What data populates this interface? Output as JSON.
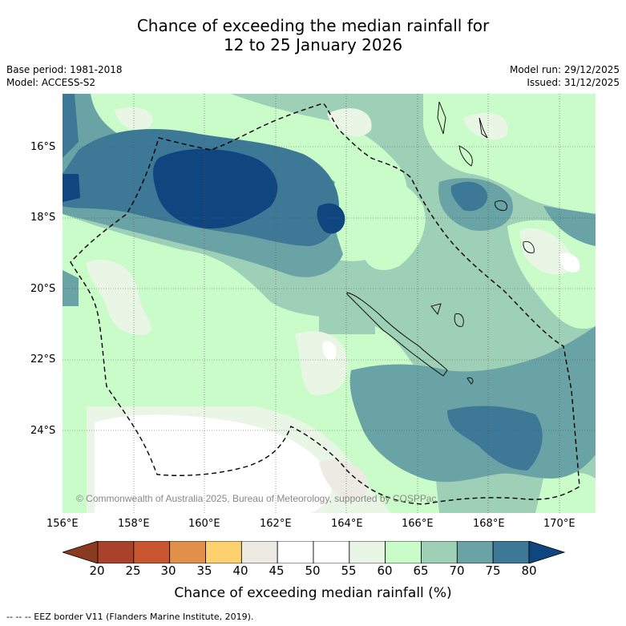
{
  "title": {
    "line1": "Chance of exceeding the median rainfall for",
    "line2": "12 to 25 January 2026"
  },
  "meta": {
    "base_period": "Base period: 1981-2018",
    "model": "Model: ACCESS-S2",
    "model_run": "Model run: 29/12/2025",
    "issued": "Issued: 31/12/2025"
  },
  "axes": {
    "lat_labels": [
      "16°S",
      "18°S",
      "20°S",
      "22°S",
      "24°S"
    ],
    "lon_labels": [
      "156°E",
      "158°E",
      "160°E",
      "162°E",
      "164°E",
      "166°E",
      "168°E",
      "170°E"
    ]
  },
  "copyright": "© Commonwealth of Australia 2025, Bureau of Meteorology, supported by COSPPac",
  "colorbar": {
    "ticks": [
      "20",
      "25",
      "30",
      "35",
      "40",
      "45",
      "50",
      "55",
      "60",
      "65",
      "70",
      "75",
      "80"
    ],
    "colors": [
      "#a8422a",
      "#c8572f",
      "#e0904a",
      "#fdd26e",
      "#ede9e3",
      "#ffffff",
      "#ffffff",
      "#e9f6e5",
      "#c9fcc9",
      "#9ed0b8",
      "#6aa3a6",
      "#3d7897"
    ],
    "under_color": "#8b3a22",
    "over_color": "#0f467f",
    "label": "Chance of exceeding median rainfall (%)"
  },
  "legend": {
    "text": "-- -- -- EEZ border V11 (Flanders Marine Institute, 2019)."
  }
}
